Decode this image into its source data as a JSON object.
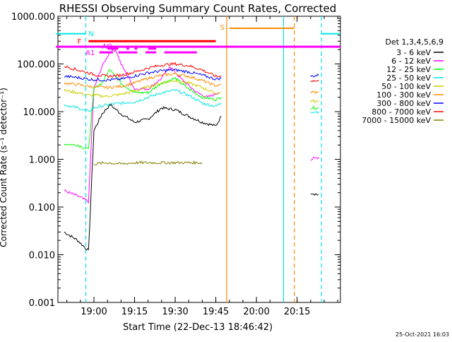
{
  "chart_data": {
    "type": "line",
    "title": "RHESSI Observing Summary Count Rates, Corrected",
    "xlabel": "Start Time (22-Dec-13 18:46:42)",
    "ylabel": "Corrected Count Rate (s⁻¹ detector⁻¹)",
    "yscale": "log",
    "ylim": [
      0.001,
      1000
    ],
    "x_ticks": [
      "19:00",
      "19:15",
      "19:30",
      "19:45",
      "20:00",
      "20:15"
    ],
    "y_ticks": [
      "0.001",
      "0.010",
      "0.100",
      "1.000",
      "10.000",
      "100.000",
      "1000.000"
    ],
    "legend_title": "Det 1,3,4,5,6,9",
    "legend_position": "right",
    "footer_date": "25-Oct-2021 16:03",
    "flags": [
      {
        "label": "N",
        "color": "#00e5e5"
      },
      {
        "label": "S",
        "color": "#ff8c00"
      },
      {
        "label": "F",
        "color": "#ff0000"
      },
      {
        "label": "AO",
        "color": "#ff00ff"
      },
      {
        "label": "A1",
        "color": "#ff00ff"
      }
    ],
    "series": [
      {
        "name": "3 - 6 keV",
        "color": "#000000",
        "points": [
          [
            "18:49",
            0.03
          ],
          [
            "18:54",
            0.02
          ],
          [
            "18:58",
            0.012
          ],
          [
            "19:00",
            4
          ],
          [
            "19:03",
            9
          ],
          [
            "19:06",
            14
          ],
          [
            "19:10",
            9
          ],
          [
            "19:15",
            6
          ],
          [
            "19:20",
            7
          ],
          [
            "19:25",
            12
          ],
          [
            "19:30",
            11
          ],
          [
            "19:35",
            8
          ],
          [
            "19:40",
            6
          ],
          [
            "19:45",
            5
          ],
          [
            "19:47",
            8
          ],
          [
            "20:20",
            0.2
          ],
          [
            "20:23",
            0.18
          ]
        ]
      },
      {
        "name": "6 - 12 keV",
        "color": "#ff00ff",
        "points": [
          [
            "18:49",
            0.22
          ],
          [
            "18:54",
            0.17
          ],
          [
            "18:58",
            0.13
          ],
          [
            "19:00",
            30
          ],
          [
            "19:03",
            90
          ],
          [
            "19:06",
            180
          ],
          [
            "19:08",
            200
          ],
          [
            "19:10",
            100
          ],
          [
            "19:15",
            30
          ],
          [
            "19:20",
            30
          ],
          [
            "19:25",
            50
          ],
          [
            "19:28",
            90
          ],
          [
            "19:32",
            50
          ],
          [
            "19:38",
            25
          ],
          [
            "19:42",
            20
          ],
          [
            "19:46",
            25
          ],
          [
            "20:20",
            1.0
          ],
          [
            "20:23",
            1.1
          ]
        ]
      },
      {
        "name": "12 - 25 keV",
        "color": "#00ff00",
        "points": [
          [
            "18:49",
            2.1
          ],
          [
            "18:54",
            2.0
          ],
          [
            "18:58",
            1.6
          ],
          [
            "19:00",
            30
          ],
          [
            "19:03",
            40
          ],
          [
            "19:06",
            80
          ],
          [
            "19:10",
            40
          ],
          [
            "19:15",
            25
          ],
          [
            "19:20",
            25
          ],
          [
            "19:25",
            40
          ],
          [
            "19:30",
            50
          ],
          [
            "19:35",
            30
          ],
          [
            "19:40",
            20
          ],
          [
            "19:45",
            18
          ],
          [
            "19:47",
            20
          ],
          [
            "20:20",
            12
          ],
          [
            "20:23",
            12
          ]
        ]
      },
      {
        "name": "25 - 50 keV",
        "color": "#00e5e5",
        "points": [
          [
            "18:49",
            14
          ],
          [
            "18:54",
            12
          ],
          [
            "18:58",
            10
          ],
          [
            "19:00",
            12
          ],
          [
            "19:05",
            14
          ],
          [
            "19:10",
            15
          ],
          [
            "19:15",
            16
          ],
          [
            "19:20",
            20
          ],
          [
            "19:25",
            25
          ],
          [
            "19:30",
            28
          ],
          [
            "19:35",
            22
          ],
          [
            "19:40",
            15
          ],
          [
            "19:45",
            13
          ],
          [
            "19:47",
            15
          ],
          [
            "20:20",
            10
          ],
          [
            "20:23",
            10
          ]
        ]
      },
      {
        "name": "50 - 100 keV",
        "color": "#cccc00",
        "points": [
          [
            "18:49",
            28
          ],
          [
            "18:54",
            25
          ],
          [
            "18:58",
            22
          ],
          [
            "19:00",
            22
          ],
          [
            "19:05",
            21
          ],
          [
            "19:10",
            23
          ],
          [
            "19:15",
            27
          ],
          [
            "19:20",
            33
          ],
          [
            "19:25",
            40
          ],
          [
            "19:30",
            45
          ],
          [
            "19:35",
            40
          ],
          [
            "19:40",
            32
          ],
          [
            "19:45",
            24
          ],
          [
            "19:47",
            25
          ],
          [
            "20:20",
            17
          ],
          [
            "20:23",
            16
          ]
        ]
      },
      {
        "name": "100 - 300 keV",
        "color": "#ff8c00",
        "points": [
          [
            "18:49",
            40
          ],
          [
            "18:54",
            37
          ],
          [
            "18:58",
            34
          ],
          [
            "19:00",
            33
          ],
          [
            "19:05",
            32
          ],
          [
            "19:10",
            34
          ],
          [
            "19:15",
            40
          ],
          [
            "19:20",
            50
          ],
          [
            "19:25",
            58
          ],
          [
            "19:30",
            62
          ],
          [
            "19:35",
            55
          ],
          [
            "19:40",
            45
          ],
          [
            "19:45",
            35
          ],
          [
            "19:47",
            36
          ],
          [
            "20:20",
            26
          ],
          [
            "20:23",
            25
          ]
        ]
      },
      {
        "name": "300 - 800 keV",
        "color": "#0000ff",
        "points": [
          [
            "18:49",
            55
          ],
          [
            "18:54",
            52
          ],
          [
            "18:58",
            48
          ],
          [
            "19:00",
            47
          ],
          [
            "19:05",
            46
          ],
          [
            "19:10",
            48
          ],
          [
            "19:15",
            56
          ],
          [
            "19:20",
            65
          ],
          [
            "19:25",
            72
          ],
          [
            "19:30",
            75
          ],
          [
            "19:35",
            68
          ],
          [
            "19:40",
            58
          ],
          [
            "19:45",
            48
          ],
          [
            "19:47",
            50
          ],
          [
            "20:20",
            55
          ],
          [
            "20:23",
            58
          ]
        ]
      },
      {
        "name": "800 - 7000 keV",
        "color": "#ff0000",
        "points": [
          [
            "18:49",
            90
          ],
          [
            "18:54",
            75
          ],
          [
            "18:58",
            65
          ],
          [
            "19:00",
            60
          ],
          [
            "19:05",
            55
          ],
          [
            "19:10",
            58
          ],
          [
            "19:15",
            68
          ],
          [
            "19:20",
            82
          ],
          [
            "19:25",
            95
          ],
          [
            "19:30",
            100
          ],
          [
            "19:35",
            92
          ],
          [
            "19:40",
            75
          ],
          [
            "19:45",
            55
          ],
          [
            "19:47",
            55
          ],
          [
            "20:20",
            45
          ],
          [
            "20:23",
            43
          ]
        ]
      },
      {
        "name": "7000 - 15000 keV",
        "color": "#808000",
        "points": [
          [
            "19:00",
            0.8
          ],
          [
            "19:05",
            0.85
          ],
          [
            "19:10",
            0.8
          ],
          [
            "19:15",
            0.85
          ],
          [
            "19:20",
            0.85
          ],
          [
            "19:25",
            0.85
          ],
          [
            "19:30",
            0.85
          ],
          [
            "19:35",
            0.85
          ],
          [
            "19:40",
            0.85
          ]
        ]
      }
    ]
  }
}
